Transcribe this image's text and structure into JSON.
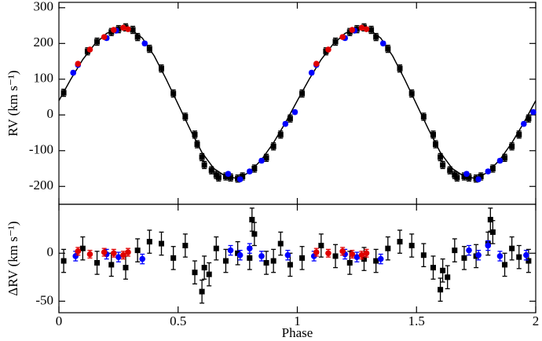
{
  "chart_data": [
    {
      "type": "scatter",
      "ylabel": "RV (km s⁻¹)",
      "xlim": [
        0,
        2
      ],
      "xticks": [
        0,
        0.5,
        1,
        1.5,
        2
      ],
      "ylim": [
        -250,
        315
      ],
      "yticks": [
        -200,
        -100,
        0,
        100,
        200,
        300
      ],
      "model": {
        "color": "#000000",
        "x": [
          0,
          0.05,
          0.1,
          0.15,
          0.2,
          0.25,
          0.3,
          0.35,
          0.4,
          0.45,
          0.5,
          0.55,
          0.6,
          0.65,
          0.7,
          0.75,
          0.8,
          0.85,
          0.9,
          0.95,
          1,
          1.05,
          1.1,
          1.15,
          1.2,
          1.25,
          1.3,
          1.35,
          1.4,
          1.45,
          1.5,
          1.55,
          1.6,
          1.65,
          1.7,
          1.75,
          1.8,
          1.85,
          1.9,
          1.95,
          2
        ],
        "values": [
          40,
          100,
          155,
          198,
          228,
          243,
          240,
          215,
          165,
          100,
          30,
          -40,
          -105,
          -150,
          -172,
          -178,
          -160,
          -125,
          -78,
          -22,
          40,
          100,
          155,
          198,
          228,
          243,
          240,
          215,
          165,
          100,
          30,
          -40,
          -105,
          -150,
          -172,
          -178,
          -160,
          -125,
          -78,
          -22,
          40
        ]
      },
      "series": [
        {
          "color": "#000000",
          "marker": "square",
          "error": 10,
          "x": [
            0.02,
            0.12,
            0.16,
            0.22,
            0.25,
            0.28,
            0.31,
            0.33,
            0.38,
            0.43,
            0.48,
            0.53,
            0.57,
            0.58,
            0.6,
            0.61,
            0.64,
            0.66,
            0.67,
            0.7,
            0.72,
            0.75,
            0.77,
            0.82,
            0.87,
            0.9,
            0.93,
            0.97,
            1.02,
            1.12,
            1.16,
            1.22,
            1.25,
            1.28,
            1.31,
            1.33,
            1.38,
            1.43,
            1.48,
            1.53,
            1.57,
            1.58,
            1.6,
            1.61,
            1.64,
            1.66,
            1.67,
            1.7,
            1.72,
            1.75,
            1.77,
            1.82,
            1.87,
            1.9,
            1.93,
            1.97
          ],
          "values": [
            62,
            178,
            205,
            232,
            240,
            245,
            238,
            218,
            185,
            130,
            60,
            -5,
            -55,
            -82,
            -118,
            -140,
            -155,
            -168,
            -175,
            -172,
            -175,
            -178,
            -172,
            -150,
            -120,
            -88,
            -55,
            -10,
            60,
            178,
            205,
            232,
            240,
            245,
            238,
            218,
            185,
            130,
            60,
            -5,
            -55,
            -82,
            -118,
            -140,
            -155,
            -168,
            -175,
            -172,
            -175,
            -178,
            -172,
            -150,
            -120,
            -88,
            -55,
            -10
          ]
        },
        {
          "color": "#0000ff",
          "marker": "circle",
          "error": 5,
          "x": [
            0.06,
            0.08,
            0.2,
            0.24,
            0.36,
            0.71,
            0.76,
            0.8,
            0.85,
            0.95,
            0.99,
            1.06,
            1.08,
            1.2,
            1.24,
            1.36,
            1.71,
            1.76,
            1.8,
            1.85,
            1.95,
            1.99
          ],
          "values": [
            118,
            140,
            215,
            236,
            200,
            -165,
            -180,
            -158,
            -128,
            -25,
            8,
            118,
            140,
            215,
            236,
            200,
            -165,
            -180,
            -158,
            -128,
            -25,
            8
          ]
        },
        {
          "color": "#e00000",
          "marker": "circle",
          "error": 4,
          "x": [
            0.08,
            0.13,
            0.19,
            0.23,
            0.27,
            0.29,
            1.08,
            1.13,
            1.19,
            1.23,
            1.27,
            1.29
          ],
          "values": [
            143,
            183,
            218,
            238,
            244,
            240,
            143,
            183,
            218,
            238,
            244,
            240
          ]
        }
      ]
    },
    {
      "type": "scatter",
      "ylabel": "ΔRV (km s⁻¹)",
      "xlabel": "Phase",
      "xlim": [
        0,
        2
      ],
      "xticks": [
        0,
        0.5,
        1,
        1.5,
        2
      ],
      "ylim": [
        -62,
        51
      ],
      "yticks": [
        -50,
        0
      ],
      "series": [
        {
          "color": "#000000",
          "marker": "square",
          "error": 12,
          "x": [
            0.02,
            0.1,
            0.16,
            0.22,
            0.28,
            0.33,
            0.38,
            0.43,
            0.48,
            0.53,
            0.57,
            0.6,
            0.61,
            0.63,
            0.66,
            0.7,
            0.75,
            0.8,
            0.81,
            0.82,
            0.87,
            0.9,
            0.93,
            0.97,
            1.02,
            1.1,
            1.16,
            1.22,
            1.28,
            1.33,
            1.38,
            1.43,
            1.48,
            1.53,
            1.57,
            1.6,
            1.61,
            1.63,
            1.66,
            1.7,
            1.75,
            1.8,
            1.81,
            1.82,
            1.87,
            1.9,
            1.93,
            1.97
          ],
          "values": [
            -8,
            5,
            -10,
            -12,
            -15,
            3,
            12,
            10,
            -5,
            8,
            -20,
            -40,
            -15,
            -22,
            5,
            -8,
            0,
            -5,
            35,
            20,
            -10,
            -8,
            10,
            -12,
            -5,
            8,
            -3,
            -10,
            -6,
            -8,
            5,
            12,
            8,
            -2,
            -15,
            -38,
            -18,
            -25,
            3,
            -5,
            -3,
            10,
            35,
            22,
            -12,
            5,
            -4,
            -8
          ]
        },
        {
          "color": "#0000ff",
          "marker": "circle",
          "error": 5,
          "x": [
            0.07,
            0.2,
            0.25,
            0.35,
            0.72,
            0.76,
            0.8,
            0.85,
            0.96,
            1.07,
            1.2,
            1.25,
            1.35,
            1.72,
            1.76,
            1.8,
            1.85,
            1.96
          ],
          "values": [
            -3,
            -1,
            -4,
            -6,
            3,
            -2,
            5,
            -3,
            -2,
            -3,
            -1,
            -4,
            -6,
            3,
            -2,
            8,
            -3,
            -2
          ]
        },
        {
          "color": "#e00000",
          "marker": "circle",
          "error": 4,
          "x": [
            0.08,
            0.13,
            0.19,
            0.23,
            0.27,
            0.29,
            1.08,
            1.13,
            1.19,
            1.23,
            1.27,
            1.29
          ],
          "values": [
            2,
            -1,
            1,
            0,
            -2,
            1,
            1,
            0,
            2,
            -1,
            -2,
            0
          ]
        }
      ]
    }
  ]
}
